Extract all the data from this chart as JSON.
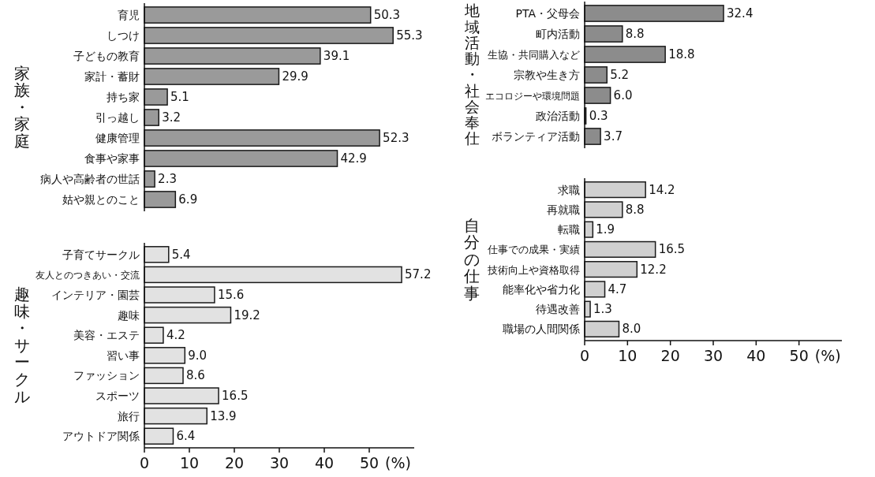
{
  "chart_data": [
    {
      "type": "bar",
      "orientation": "horizontal",
      "ylabel": "家族・家庭",
      "categories": [
        "育児",
        "しつけ",
        "子どもの教育",
        "家計・蓄財",
        "持ち家",
        "引っ越し",
        "健康管理",
        "食事や家事",
        "病人や高齢者の世話",
        "姑や親とのこと"
      ],
      "values": [
        50.3,
        55.3,
        39.1,
        29.9,
        5.1,
        3.2,
        52.3,
        42.9,
        2.3,
        6.9
      ],
      "color": "#9a9a9a",
      "data_labels": true,
      "tick_labels": "y"
    },
    {
      "type": "bar",
      "orientation": "horizontal",
      "ylabel": "趣味・サークル",
      "categories": [
        "子育てサークル",
        "友人とのつきあい・交流",
        "インテリア・園芸",
        "趣味",
        "美容・エステ",
        "習い事",
        "ファッション",
        "スポーツ",
        "旅行",
        "アウトドア関係"
      ],
      "values": [
        5.4,
        57.2,
        15.6,
        19.2,
        4.2,
        9.0,
        8.6,
        16.5,
        13.9,
        6.4
      ],
      "value_labels": [
        "5.4",
        "57.2",
        "15.6",
        "19.2",
        "4.2",
        "9.0",
        "8.6",
        "16.5",
        "13.9",
        "6.4"
      ],
      "color": "#e2e2e2",
      "xlim": [
        0,
        60
      ],
      "xticks": [
        0,
        10,
        20,
        30,
        40,
        50
      ],
      "xlabel": "(%)"
    },
    {
      "type": "bar",
      "orientation": "horizontal",
      "ylabel": "地域活動・社会奉仕",
      "categories": [
        "PTA・父母会",
        "町内活動",
        "生協・共同購入など",
        "宗教や生き方",
        "エコロジーや環境問題",
        "政治活動",
        "ボランティア活動"
      ],
      "values": [
        32.4,
        8.8,
        18.8,
        5.2,
        6.0,
        0.3,
        3.7
      ],
      "value_labels": [
        "32.4",
        "8.8",
        "18.8",
        "5.2",
        "6.0",
        "0.3",
        "3.7"
      ],
      "color": "#8c8c8c",
      "tick_labels": "y"
    },
    {
      "type": "bar",
      "orientation": "horizontal",
      "ylabel": "自分の仕事",
      "categories": [
        "求職",
        "再就職",
        "転職",
        "仕事での成果・実績",
        "技術向上や資格取得",
        "能率化や省力化",
        "待遇改善",
        "職場の人間関係"
      ],
      "values": [
        14.2,
        8.8,
        1.9,
        16.5,
        12.2,
        4.7,
        1.3,
        8.0
      ],
      "value_labels": [
        "14.2",
        "8.8",
        "1.9",
        "16.5",
        "12.2",
        "4.7",
        "1.3",
        "8.0"
      ],
      "color": "#d0d0d0",
      "xlim": [
        0,
        60
      ],
      "xticks": [
        0,
        10,
        20,
        30,
        40,
        50
      ],
      "xlabel": "(%)"
    }
  ]
}
